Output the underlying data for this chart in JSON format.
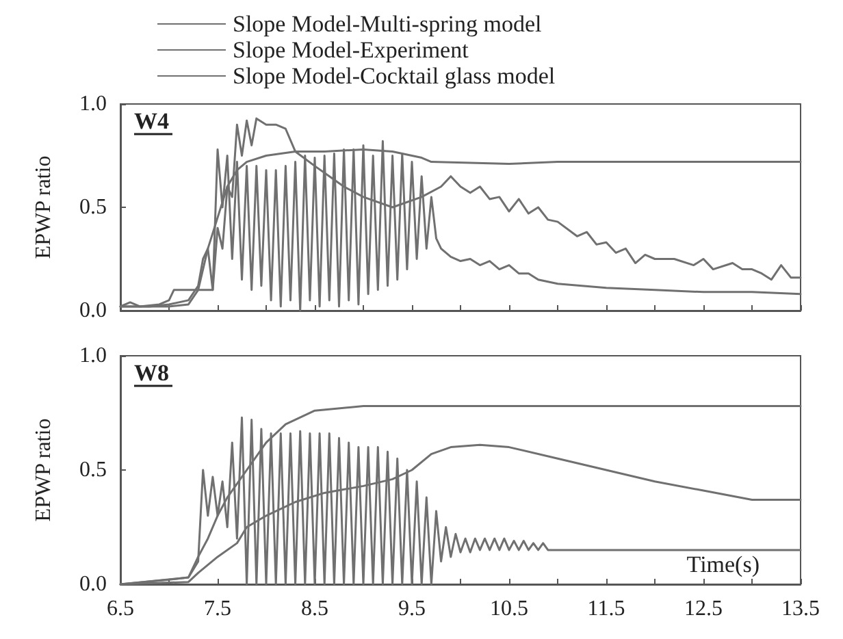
{
  "chart_data": [
    {
      "type": "line",
      "ylabel": "EPWP ratio",
      "annotations": [
        "W4"
      ],
      "legend": "top",
      "tick_labels": "y",
      "grid": false,
      "marker": "none",
      "line_style": "solid",
      "xlim": [
        6.5,
        13.5
      ],
      "xticks": [
        6.5,
        {
          "value": 7,
          "label": null
        },
        7.5,
        {
          "value": 8,
          "label": null
        },
        8.5,
        {
          "value": 9,
          "label": null
        },
        9.5,
        {
          "value": 10,
          "label": null
        },
        10.5,
        {
          "value": 11,
          "label": null
        },
        11.5,
        {
          "value": 12,
          "label": null
        },
        12.5,
        {
          "value": 13,
          "label": null
        },
        13.5
      ],
      "ylim": [
        0,
        1
      ],
      "yticks": [
        {
          "value": 0,
          "label": "0.0"
        },
        {
          "value": 0.5,
          "label": "0.5"
        },
        {
          "value": 1,
          "label": "1.0"
        }
      ],
      "series": [
        {
          "name": "Slope Model-Multi-spring model",
          "color": "#707070",
          "x": [
            6.5,
            6.8,
            7.0,
            7.2,
            7.3,
            7.35,
            7.4,
            7.45,
            7.5,
            7.55,
            7.6,
            7.65,
            7.7,
            7.75,
            7.8,
            7.85,
            7.9,
            7.95,
            8.0,
            8.05,
            8.1,
            8.15,
            8.2,
            8.25,
            8.3,
            8.35,
            8.4,
            8.45,
            8.5,
            8.55,
            8.6,
            8.65,
            8.7,
            8.75,
            8.8,
            8.85,
            8.9,
            8.95,
            9.0,
            9.05,
            9.1,
            9.15,
            9.2,
            9.25,
            9.3,
            9.35,
            9.4,
            9.45,
            9.5,
            9.55,
            9.6,
            9.65,
            9.7,
            9.75,
            9.8,
            9.9,
            10.0,
            10.1,
            10.2,
            10.3,
            10.4,
            10.5,
            10.6,
            10.7,
            10.8,
            11.0,
            11.5,
            12.0,
            12.5,
            13.0,
            13.5
          ],
          "values": [
            0.02,
            0.02,
            0.03,
            0.05,
            0.12,
            0.25,
            0.3,
            0.1,
            0.78,
            0.5,
            0.75,
            0.25,
            0.72,
            0.15,
            0.7,
            0.1,
            0.7,
            0.12,
            0.68,
            0.05,
            0.68,
            0.02,
            0.7,
            0.05,
            0.72,
            0.0,
            0.75,
            0.05,
            0.74,
            0.02,
            0.75,
            0.05,
            0.76,
            0.02,
            0.78,
            0.05,
            0.78,
            0.03,
            0.8,
            0.08,
            0.75,
            0.1,
            0.82,
            0.12,
            0.75,
            0.15,
            0.76,
            0.2,
            0.72,
            0.25,
            0.65,
            0.3,
            0.55,
            0.35,
            0.3,
            0.26,
            0.24,
            0.25,
            0.22,
            0.24,
            0.2,
            0.22,
            0.18,
            0.18,
            0.15,
            0.13,
            0.11,
            0.1,
            0.09,
            0.09,
            0.08
          ]
        },
        {
          "name": "Slope Model-Experiment",
          "color": "#707070",
          "x": [
            6.5,
            6.6,
            6.7,
            6.9,
            7.0,
            7.05,
            7.45,
            7.5,
            7.55,
            7.6,
            7.65,
            7.7,
            7.75,
            7.8,
            7.85,
            7.9,
            8.0,
            8.1,
            8.2,
            8.3,
            8.5,
            8.8,
            9.0,
            9.3,
            9.6,
            9.8,
            9.9,
            10.0,
            10.1,
            10.2,
            10.3,
            10.4,
            10.5,
            10.6,
            10.7,
            10.8,
            10.9,
            11.0,
            11.2,
            11.3,
            11.4,
            11.5,
            11.6,
            11.7,
            11.8,
            11.9,
            12.0,
            12.2,
            12.4,
            12.5,
            12.6,
            12.8,
            12.9,
            13.0,
            13.1,
            13.2,
            13.3,
            13.4,
            13.5
          ],
          "values": [
            0.02,
            0.04,
            0.02,
            0.03,
            0.05,
            0.1,
            0.1,
            0.4,
            0.3,
            0.6,
            0.55,
            0.9,
            0.75,
            0.92,
            0.8,
            0.93,
            0.9,
            0.9,
            0.88,
            0.77,
            0.7,
            0.6,
            0.55,
            0.5,
            0.55,
            0.6,
            0.65,
            0.6,
            0.57,
            0.6,
            0.54,
            0.55,
            0.48,
            0.54,
            0.47,
            0.5,
            0.44,
            0.43,
            0.36,
            0.38,
            0.32,
            0.33,
            0.28,
            0.3,
            0.23,
            0.27,
            0.25,
            0.25,
            0.22,
            0.25,
            0.2,
            0.23,
            0.2,
            0.2,
            0.18,
            0.15,
            0.22,
            0.16,
            0.16
          ]
        },
        {
          "name": "Slope Model-Cocktail glass model",
          "color": "#707070",
          "x": [
            6.5,
            7.0,
            7.2,
            7.3,
            7.4,
            7.5,
            7.6,
            7.7,
            7.8,
            8.0,
            8.3,
            8.6,
            9.0,
            9.3,
            9.6,
            9.7,
            10.5,
            11.0,
            13.5
          ],
          "values": [
            0.02,
            0.02,
            0.03,
            0.1,
            0.3,
            0.45,
            0.6,
            0.68,
            0.72,
            0.75,
            0.77,
            0.77,
            0.78,
            0.77,
            0.74,
            0.72,
            0.71,
            0.72,
            0.72
          ]
        }
      ]
    },
    {
      "type": "line",
      "ylabel": "EPWP ratio",
      "xlabel": "Time(s)",
      "annotations": [
        "W8"
      ],
      "grid": false,
      "marker": "none",
      "line_style": "solid",
      "xlim": [
        6.5,
        13.5
      ],
      "xticks": [
        6.5,
        {
          "value": 7,
          "label": null
        },
        7.5,
        {
          "value": 8,
          "label": null
        },
        8.5,
        {
          "value": 9,
          "label": null
        },
        9.5,
        {
          "value": 10,
          "label": null
        },
        10.5,
        {
          "value": 11,
          "label": null
        },
        11.5,
        {
          "value": 12,
          "label": null
        },
        12.5,
        {
          "value": 13,
          "label": null
        },
        13.5
      ],
      "ylim": [
        0,
        1
      ],
      "yticks": [
        {
          "value": 0,
          "label": "0.0"
        },
        {
          "value": 0.5,
          "label": "0.5"
        },
        {
          "value": 1,
          "label": "1.0"
        }
      ],
      "series": [
        {
          "color": "#707070",
          "x": [
            6.5,
            7.2,
            7.3,
            7.35,
            7.4,
            7.45,
            7.5,
            7.55,
            7.6,
            7.65,
            7.7,
            7.75,
            7.8,
            7.85,
            7.9,
            7.95,
            8.0,
            8.05,
            8.1,
            8.15,
            8.2,
            8.25,
            8.3,
            8.35,
            8.4,
            8.45,
            8.5,
            8.55,
            8.6,
            8.65,
            8.7,
            8.75,
            8.8,
            8.85,
            8.9,
            8.95,
            9.0,
            9.05,
            9.1,
            9.15,
            9.2,
            9.25,
            9.3,
            9.35,
            9.4,
            9.45,
            9.5,
            9.55,
            9.6,
            9.65,
            9.7,
            9.75,
            9.8,
            9.85,
            9.9,
            9.95,
            10.0,
            10.05,
            10.1,
            10.15,
            10.2,
            10.25,
            10.3,
            10.35,
            10.4,
            10.45,
            10.5,
            10.55,
            10.6,
            10.65,
            10.7,
            10.75,
            10.8,
            10.85,
            10.9,
            11.0,
            12.0,
            13.5
          ],
          "values": [
            0.0,
            0.03,
            0.1,
            0.5,
            0.3,
            0.47,
            0.3,
            0.45,
            0.25,
            0.62,
            0.2,
            0.73,
            0.0,
            0.72,
            0.0,
            0.68,
            0.0,
            0.66,
            0.0,
            0.66,
            0.0,
            0.66,
            0.0,
            0.67,
            0.0,
            0.66,
            0.0,
            0.66,
            0.0,
            0.66,
            0.0,
            0.64,
            0.0,
            0.62,
            0.0,
            0.6,
            0.0,
            0.6,
            0.0,
            0.6,
            0.0,
            0.58,
            0.0,
            0.55,
            0.0,
            0.5,
            0.0,
            0.45,
            0.0,
            0.38,
            0.0,
            0.32,
            0.1,
            0.25,
            0.12,
            0.22,
            0.14,
            0.2,
            0.14,
            0.2,
            0.15,
            0.2,
            0.15,
            0.2,
            0.15,
            0.2,
            0.15,
            0.19,
            0.15,
            0.19,
            0.15,
            0.18,
            0.15,
            0.18,
            0.15,
            0.15,
            0.15,
            0.15
          ]
        },
        {
          "color": "#707070",
          "x": [
            6.5,
            7.2,
            7.3,
            7.5,
            7.7,
            7.8,
            8.0,
            8.3,
            8.6,
            9.0,
            9.3,
            9.5,
            9.7,
            9.9,
            10.2,
            10.5,
            11.0,
            11.5,
            12.0,
            12.5,
            13.0,
            13.5
          ],
          "values": [
            0.0,
            0.01,
            0.05,
            0.12,
            0.18,
            0.25,
            0.3,
            0.36,
            0.4,
            0.43,
            0.46,
            0.5,
            0.57,
            0.6,
            0.61,
            0.6,
            0.55,
            0.5,
            0.45,
            0.41,
            0.37,
            0.37
          ]
        },
        {
          "color": "#707070",
          "x": [
            6.5,
            7.0,
            7.2,
            7.3,
            7.4,
            7.5,
            7.6,
            7.8,
            8.0,
            8.2,
            8.5,
            9.0,
            13.5
          ],
          "values": [
            0.0,
            0.02,
            0.03,
            0.12,
            0.2,
            0.3,
            0.38,
            0.5,
            0.62,
            0.7,
            0.76,
            0.78,
            0.78
          ]
        }
      ]
    }
  ]
}
